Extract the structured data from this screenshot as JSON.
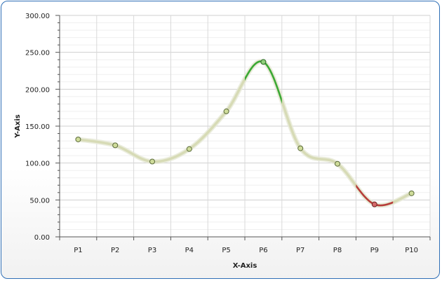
{
  "chart_data": {
    "type": "line",
    "smooth": true,
    "xlabel": "X-Axis",
    "ylabel": "Y-Axis",
    "ylim": [
      0,
      300
    ],
    "y_ticks": [
      "0.00",
      "50.00",
      "100.00",
      "150.00",
      "200.00",
      "250.00",
      "300.00"
    ],
    "categories": [
      "P1",
      "P2",
      "P3",
      "P4",
      "P5",
      "P6",
      "P7",
      "P8",
      "P9",
      "P10"
    ],
    "values": [
      132,
      124,
      102,
      119,
      170,
      237,
      120,
      99,
      44,
      59
    ],
    "grid": true,
    "colors": {
      "line": "#d7dbb6",
      "point_fill": "#cfdc9a",
      "point_stroke": "#5a6a3a",
      "highlight_max": "#39a935",
      "highlight_min": "#b83b3b",
      "border": "#2f6fb6"
    }
  }
}
